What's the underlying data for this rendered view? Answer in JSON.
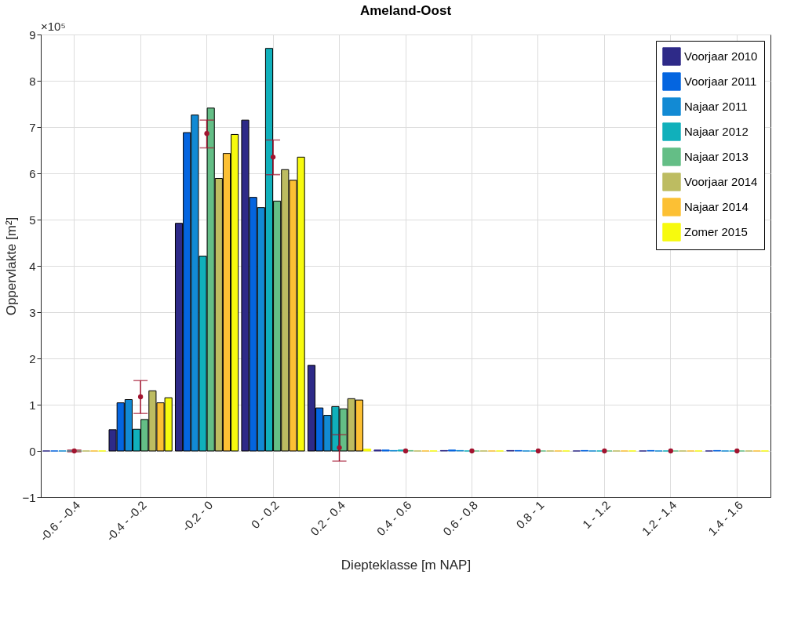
{
  "chart_data": {
    "type": "bar",
    "title": "Ameland-Oost",
    "xlabel": "Diepteklasse [m NAP]",
    "ylabel": "Oppervlakte [m²]",
    "annotations": [
      "×10⁵"
    ],
    "categories": [
      "-0.6 - -0.4",
      "-0.4 - -0.2",
      "-0.2 - 0",
      "0 - 0.2",
      "0.2 - 0.4",
      "0.4 - 0.6",
      "0.6 - 0.8",
      "0.8 - 1",
      "1 - 1.2",
      "1.2 - 1.4",
      "1.4 - 1.6"
    ],
    "series": [
      {
        "name": "Voorjaar 2010",
        "color": "#2e2a88",
        "values": [
          0,
          0.46,
          4.92,
          7.15,
          1.85,
          0.02,
          0.01,
          0.01,
          0,
          0,
          0
        ]
      },
      {
        "name": "Voorjaar 2011",
        "color": "#0465e0",
        "values": [
          0,
          1.04,
          6.88,
          5.48,
          0.93,
          0.02,
          0.02,
          0.01,
          0.01,
          0.01,
          0.01
        ]
      },
      {
        "name": "Najaar 2011",
        "color": "#128ad4",
        "values": [
          0,
          1.11,
          7.26,
          5.26,
          0.77,
          0.01,
          0.01,
          0,
          0,
          0,
          0
        ]
      },
      {
        "name": "Najaar 2012",
        "color": "#10b0bb",
        "values": [
          0,
          0.47,
          4.21,
          8.7,
          0.96,
          0.02,
          0,
          0,
          0,
          0,
          0
        ]
      },
      {
        "name": "Najaar 2013",
        "color": "#64be86",
        "values": [
          0,
          0.68,
          7.41,
          5.4,
          0.91,
          0.01,
          0,
          0,
          0,
          0,
          0
        ]
      },
      {
        "name": "Voorjaar 2014",
        "color": "#bdbc61",
        "values": [
          0,
          1.3,
          5.89,
          6.08,
          1.13,
          0,
          0,
          0,
          0,
          0,
          0
        ]
      },
      {
        "name": "Najaar 2014",
        "color": "#fcc034",
        "values": [
          0,
          1.04,
          6.43,
          5.85,
          1.1,
          0,
          0,
          0,
          0,
          0,
          0
        ]
      },
      {
        "name": "Zomer 2015",
        "color": "#f7fa0e",
        "values": [
          0,
          1.15,
          6.84,
          6.35,
          0.04,
          0,
          0,
          0,
          0,
          0,
          0
        ]
      },
      {
        "type": "scatter",
        "color": "#a2142f",
        "marker": "circle",
        "values": [
          0,
          1.17,
          6.86,
          6.35,
          0.07,
          0,
          0,
          0,
          0,
          0,
          0
        ],
        "errors": [
          [
            -0.02,
            0.02
          ],
          [
            0.81,
            1.52
          ],
          [
            6.55,
            7.15
          ],
          [
            5.97,
            6.72
          ],
          [
            -0.22,
            0.35
          ],
          null,
          null,
          null,
          null,
          null,
          null
        ]
      }
    ],
    "ylim": [
      -1,
      9
    ],
    "yticks": [
      -1,
      0,
      1,
      2,
      3,
      4,
      5,
      6,
      7,
      8,
      9
    ],
    "grid": true,
    "legend": "top right"
  }
}
